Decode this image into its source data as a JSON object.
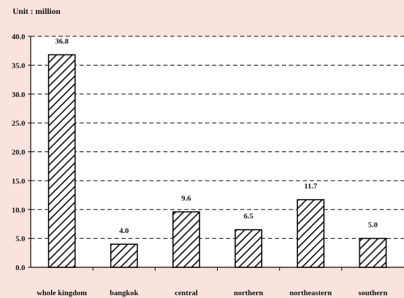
{
  "chart_data": {
    "type": "bar",
    "unit_label": "Unit : million",
    "categories": [
      "whole kingdom",
      "bangkok",
      "central",
      "northern",
      "northeastern",
      "southern"
    ],
    "values": [
      36.8,
      4.0,
      9.6,
      6.5,
      11.7,
      5.0
    ],
    "value_labels": [
      "36.8",
      "4.0",
      "9.6",
      "6.5",
      "11.7",
      "5.0"
    ],
    "y_ticks": [
      "0.0",
      "5.0",
      "10.0",
      "15.0",
      "20.0",
      "25.0",
      "30.0",
      "35.0",
      "40.0"
    ],
    "ylim": [
      0,
      40
    ],
    "grid": true,
    "bar_style": "diagonal hatch",
    "colors": {
      "background": "#fbe3dd",
      "plot_area": "#ffffff",
      "axis": "#000000",
      "bar_fill": "#ffffff",
      "bar_hatch": "#111111"
    }
  }
}
